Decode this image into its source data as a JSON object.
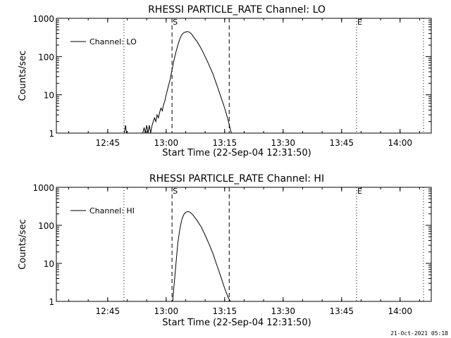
{
  "chart_data": [
    {
      "type": "line",
      "title": "RHESSI PARTICLE_RATE Channel: LO",
      "xlabel": "Start Time (22-Sep-04 12:31:50)",
      "ylabel": "Counts/sec",
      "x_unit": "minutes",
      "xlim": [
        "12:31:50",
        "14:08:00"
      ],
      "ylim": [
        1,
        1000
      ],
      "y_scale": "log",
      "x_ticks": [
        "12:45",
        "13:00",
        "13:15",
        "13:30",
        "13:45",
        "14:00"
      ],
      "y_ticks": [
        "1",
        "10",
        "100",
        "1000"
      ],
      "legend": {
        "label": "Channel: LO",
        "position": "top-left"
      },
      "series": [
        {
          "name": "Channel: LO",
          "points": [
            [
              "12:49:15",
              1
            ],
            [
              "12:49:35",
              1.6
            ],
            [
              "12:49:50",
              1
            ],
            [
              "12:54:00",
              1
            ],
            [
              "12:54:20",
              1.4
            ],
            [
              "12:54:40",
              1
            ],
            [
              "12:55:00",
              1.6
            ],
            [
              "12:55:20",
              1
            ],
            [
              "12:55:40",
              1.6
            ],
            [
              "12:56:00",
              1
            ],
            [
              "12:56:20",
              1.5
            ],
            [
              "12:56:40",
              2.0
            ],
            [
              "12:57:00",
              2.5
            ],
            [
              "12:57:20",
              2.0
            ],
            [
              "12:57:40",
              3.0
            ],
            [
              "12:58:00",
              2.5
            ],
            [
              "12:58:20",
              3.5
            ],
            [
              "12:58:40",
              4.5
            ],
            [
              "12:59:00",
              3.8
            ],
            [
              "12:59:20",
              5.5
            ],
            [
              "12:59:40",
              7.0
            ],
            [
              "13:00:00",
              10
            ],
            [
              "13:00:30",
              16
            ],
            [
              "13:01:00",
              25
            ],
            [
              "13:01:30",
              45
            ],
            [
              "13:02:00",
              80
            ],
            [
              "13:02:30",
              130
            ],
            [
              "13:03:00",
              200
            ],
            [
              "13:03:30",
              290
            ],
            [
              "13:04:00",
              370
            ],
            [
              "13:04:30",
              420
            ],
            [
              "13:05:00",
              440
            ],
            [
              "13:05:30",
              450
            ],
            [
              "13:06:00",
              430
            ],
            [
              "13:06:30",
              390
            ],
            [
              "13:07:00",
              330
            ],
            [
              "13:08:00",
              240
            ],
            [
              "13:09:00",
              160
            ],
            [
              "13:10:00",
              100
            ],
            [
              "13:11:00",
              60
            ],
            [
              "13:12:00",
              35
            ],
            [
              "13:13:00",
              18
            ],
            [
              "13:14:00",
              9
            ],
            [
              "13:15:00",
              4.5
            ],
            [
              "13:16:00",
              2.0
            ],
            [
              "13:16:30",
              1.2
            ],
            [
              "13:16:45",
              1
            ]
          ]
        }
      ],
      "markers": [
        {
          "time": "12:49:10",
          "style": "dotted",
          "label": ""
        },
        {
          "time": "13:01:30",
          "style": "dashed",
          "label": "S"
        },
        {
          "time": "13:16:10",
          "style": "dashed",
          "label": ""
        },
        {
          "time": "13:48:50",
          "style": "dotted",
          "label": "E"
        },
        {
          "time": "14:06:00",
          "style": "dotted",
          "label": ""
        }
      ]
    },
    {
      "type": "line",
      "title": "RHESSI PARTICLE_RATE Channel: HI",
      "xlabel": "Start Time (22-Sep-04 12:31:50)",
      "ylabel": "Counts/sec",
      "x_unit": "minutes",
      "xlim": [
        "12:31:50",
        "14:08:00"
      ],
      "ylim": [
        1,
        1000
      ],
      "y_scale": "log",
      "x_ticks": [
        "12:45",
        "13:00",
        "13:15",
        "13:30",
        "13:45",
        "14:00"
      ],
      "y_ticks": [
        "1",
        "10",
        "100",
        "1000"
      ],
      "legend": {
        "label": "Channel: HI",
        "position": "top-left"
      },
      "series": [
        {
          "name": "Channel: HI",
          "points": [
            [
              "13:01:40",
              1
            ],
            [
              "13:02:00",
              2.5
            ],
            [
              "13:02:20",
              6
            ],
            [
              "13:02:40",
              15
            ],
            [
              "13:03:00",
              35
            ],
            [
              "13:03:30",
              80
            ],
            [
              "13:04:00",
              140
            ],
            [
              "13:04:30",
              190
            ],
            [
              "13:05:00",
              220
            ],
            [
              "13:05:30",
              230
            ],
            [
              "13:06:00",
              225
            ],
            [
              "13:06:30",
              205
            ],
            [
              "13:07:00",
              180
            ],
            [
              "13:08:00",
              130
            ],
            [
              "13:09:00",
              90
            ],
            [
              "13:10:00",
              55
            ],
            [
              "13:11:00",
              32
            ],
            [
              "13:12:00",
              18
            ],
            [
              "13:13:00",
              9
            ],
            [
              "13:14:00",
              4.5
            ],
            [
              "13:15:00",
              2.2
            ],
            [
              "13:16:00",
              1.2
            ],
            [
              "13:16:30",
              1
            ]
          ]
        }
      ],
      "markers": [
        {
          "time": "12:49:10",
          "style": "dotted",
          "label": ""
        },
        {
          "time": "13:01:30",
          "style": "dashed",
          "label": "S"
        },
        {
          "time": "13:16:10",
          "style": "dashed",
          "label": ""
        },
        {
          "time": "13:48:50",
          "style": "dotted",
          "label": "E"
        },
        {
          "time": "14:06:00",
          "style": "dotted",
          "label": ""
        }
      ]
    }
  ],
  "footer": {
    "timestamp": "21-Oct-2021 05:18"
  }
}
